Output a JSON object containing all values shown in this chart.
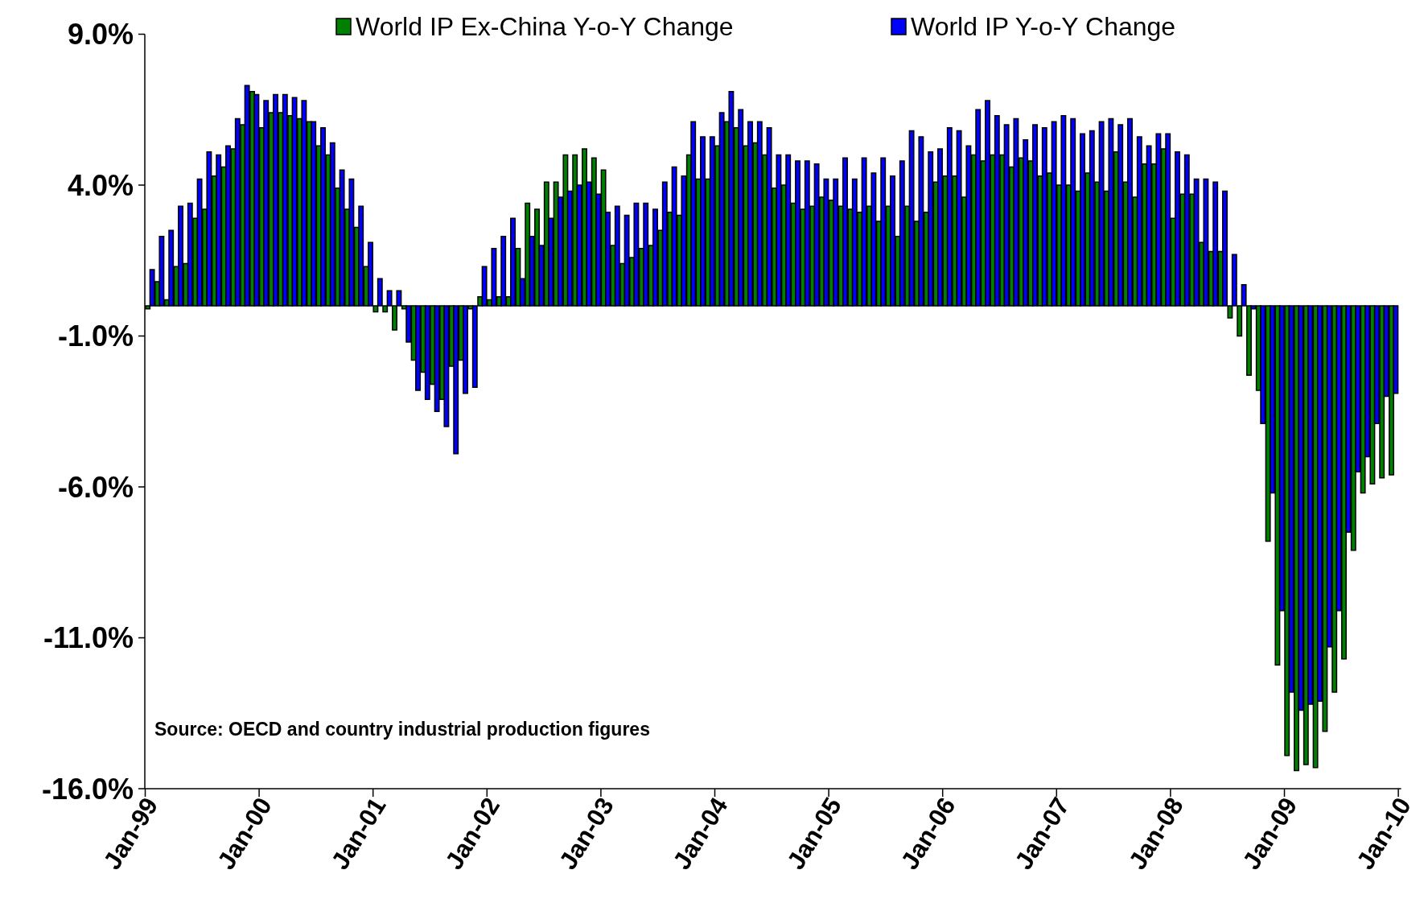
{
  "chart_data": {
    "type": "bar",
    "categories": [
      "Jan-99",
      null,
      null,
      null,
      null,
      null,
      null,
      null,
      null,
      null,
      null,
      null,
      "Jan-00",
      null,
      null,
      null,
      null,
      null,
      null,
      null,
      null,
      null,
      null,
      null,
      "Jan-01",
      null,
      null,
      null,
      null,
      null,
      null,
      null,
      null,
      null,
      null,
      null,
      "Jan-02",
      null,
      null,
      null,
      null,
      null,
      null,
      null,
      null,
      null,
      null,
      null,
      "Jan-03",
      null,
      null,
      null,
      null,
      null,
      null,
      null,
      null,
      null,
      null,
      null,
      "Jan-04",
      null,
      null,
      null,
      null,
      null,
      null,
      null,
      null,
      null,
      null,
      null,
      "Jan-05",
      null,
      null,
      null,
      null,
      null,
      null,
      null,
      null,
      null,
      null,
      null,
      "Jan-06",
      null,
      null,
      null,
      null,
      null,
      null,
      null,
      null,
      null,
      null,
      null,
      "Jan-07",
      null,
      null,
      null,
      null,
      null,
      null,
      null,
      null,
      null,
      null,
      null,
      "Jan-08",
      null,
      null,
      null,
      null,
      null,
      null,
      null,
      null,
      null,
      null,
      null,
      "Jan-09",
      null,
      null,
      null,
      null,
      null,
      null,
      null,
      null,
      null,
      null,
      null,
      "Jan-10"
    ],
    "series": [
      {
        "name": "World IP Ex-China Y-o-Y Change",
        "color": "#008000",
        "values": [
          -0.1,
          0.8,
          0.2,
          1.3,
          1.4,
          2.9,
          3.2,
          4.3,
          4.6,
          5.2,
          6.0,
          7.1,
          5.9,
          6.4,
          6.4,
          6.3,
          6.2,
          6.1,
          5.3,
          5.0,
          3.9,
          3.2,
          2.6,
          1.3,
          -0.2,
          -0.2,
          -0.8,
          -0.1,
          -1.8,
          -2.2,
          -2.6,
          -3.1,
          -2.0,
          -1.8,
          -0.1,
          0.3,
          0.2,
          0.3,
          0.3,
          1.9,
          3.4,
          3.2,
          4.1,
          4.1,
          5.0,
          5.0,
          5.2,
          4.9,
          4.5,
          2.0,
          1.4,
          1.6,
          1.9,
          2.0,
          2.5,
          3.1,
          3.0,
          5.0,
          4.2,
          4.2,
          5.3,
          6.1,
          5.9,
          5.3,
          5.4,
          5.0,
          3.9,
          4.0,
          3.4,
          3.2,
          3.3,
          3.6,
          3.5,
          3.3,
          3.2,
          3.1,
          3.3,
          2.8,
          3.3,
          2.3,
          3.3,
          2.8,
          3.1,
          4.1,
          4.3,
          4.3,
          3.6,
          5.0,
          4.8,
          5.0,
          5.0,
          4.6,
          4.9,
          4.8,
          4.3,
          4.4,
          4.0,
          4.0,
          3.8,
          4.4,
          4.1,
          3.8,
          5.1,
          4.1,
          3.6,
          4.7,
          4.7,
          5.2,
          2.9,
          3.7,
          3.7,
          2.1,
          1.8,
          1.8,
          -0.4,
          -1.0,
          -2.3,
          -2.8,
          -7.8,
          -11.9,
          -14.9,
          -15.4,
          -15.2,
          -15.3,
          -14.1,
          -12.8,
          -11.7,
          -8.1,
          -6.2,
          -5.9,
          -5.7,
          -5.6,
          null
        ]
      },
      {
        "name": "World IP Y-o-Y Change",
        "color": "#0000ff",
        "values": [
          1.2,
          2.3,
          2.5,
          3.3,
          3.4,
          4.2,
          5.1,
          5.0,
          5.3,
          6.2,
          7.3,
          7.0,
          6.8,
          7.0,
          7.0,
          6.9,
          6.8,
          6.1,
          5.9,
          5.4,
          4.5,
          4.2,
          3.3,
          2.1,
          0.9,
          0.5,
          0.5,
          -1.2,
          -2.8,
          -3.1,
          -3.5,
          -4.0,
          -4.9,
          -2.9,
          -2.7,
          1.3,
          1.9,
          2.3,
          2.9,
          0.9,
          2.3,
          2.0,
          2.9,
          3.6,
          3.8,
          4.0,
          4.1,
          3.7,
          3.1,
          3.3,
          3.0,
          3.4,
          3.4,
          3.2,
          4.1,
          4.6,
          4.3,
          6.1,
          5.6,
          5.6,
          6.4,
          7.1,
          6.5,
          6.1,
          6.1,
          5.9,
          5.0,
          5.0,
          4.8,
          4.8,
          4.7,
          4.2,
          4.2,
          4.9,
          4.2,
          4.9,
          4.4,
          4.9,
          4.3,
          4.8,
          5.8,
          5.6,
          5.1,
          5.2,
          5.9,
          5.8,
          5.3,
          6.5,
          6.8,
          6.3,
          6.0,
          6.2,
          5.5,
          6.0,
          5.9,
          6.1,
          6.3,
          6.2,
          5.7,
          5.8,
          6.1,
          6.2,
          6.0,
          6.2,
          5.6,
          5.3,
          5.7,
          5.7,
          5.1,
          5.0,
          4.2,
          4.2,
          4.1,
          3.8,
          1.7,
          0.7,
          -0.1,
          -3.9,
          -6.2,
          -10.1,
          -12.8,
          -13.4,
          -13.2,
          -13.1,
          -11.3,
          -10.1,
          -7.5,
          -5.5,
          -5.0,
          -3.9,
          -3.0,
          -2.9,
          null
        ]
      }
    ],
    "ylim": [
      -16,
      9
    ],
    "yticks": [
      {
        "value": 9,
        "label": "9.0%"
      },
      {
        "value": 4,
        "label": "4.0%"
      },
      {
        "value": -1,
        "label": "-1.0%"
      },
      {
        "value": -6,
        "label": "-6.0%"
      },
      {
        "value": -11,
        "label": "-11.0%"
      },
      {
        "value": -16,
        "label": "-16.0%"
      }
    ],
    "legend": "top",
    "annotations": [
      "Source: OECD and country industrial production figures"
    ]
  }
}
